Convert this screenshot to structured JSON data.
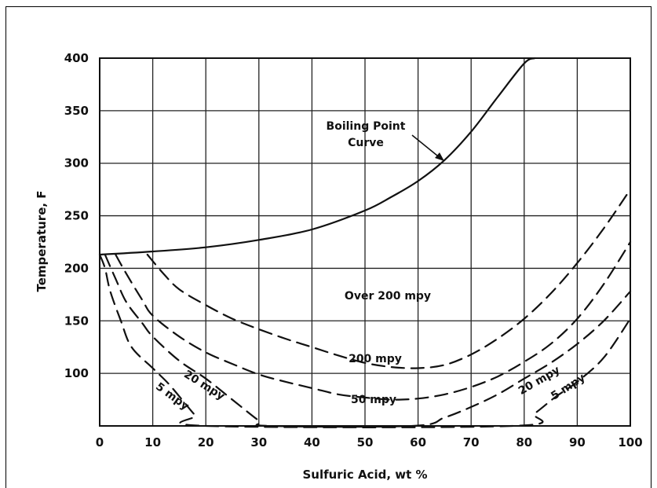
{
  "chart_data": {
    "type": "line",
    "title": "",
    "xlabel": "Sulfuric Acid, wt %",
    "ylabel": "Temperature, F",
    "xlim": [
      0,
      100
    ],
    "ylim": [
      50,
      400
    ],
    "x_ticks": [
      "0",
      "10",
      "20",
      "30",
      "40",
      "50",
      "60",
      "70",
      "80",
      "90",
      "100"
    ],
    "y_ticks": [
      "100",
      "150",
      "200",
      "250",
      "300",
      "350",
      "400"
    ],
    "grid": true,
    "series": [
      {
        "name": "Boiling Point Curve",
        "style": "solid",
        "points": [
          [
            0,
            213
          ],
          [
            10,
            216
          ],
          [
            20,
            220
          ],
          [
            30,
            227
          ],
          [
            40,
            237
          ],
          [
            50,
            255
          ],
          [
            55,
            268
          ],
          [
            60,
            283
          ],
          [
            65,
            303
          ],
          [
            70,
            330
          ],
          [
            75,
            363
          ],
          [
            80,
            395
          ],
          [
            82,
            400
          ]
        ]
      },
      {
        "name": "200 mpy",
        "style": "dashed",
        "points": [
          [
            9,
            213
          ],
          [
            12,
            195
          ],
          [
            15,
            180
          ],
          [
            20,
            165
          ],
          [
            25,
            152
          ],
          [
            30,
            142
          ],
          [
            35,
            133
          ],
          [
            40,
            125
          ],
          [
            45,
            117
          ],
          [
            50,
            110
          ],
          [
            55,
            106
          ],
          [
            60,
            105
          ],
          [
            65,
            108
          ],
          [
            70,
            118
          ],
          [
            75,
            133
          ],
          [
            80,
            152
          ],
          [
            85,
            176
          ],
          [
            90,
            205
          ],
          [
            95,
            238
          ],
          [
            100,
            275
          ]
        ]
      },
      {
        "name": "50 mpy",
        "style": "dashed",
        "points": [
          [
            3,
            213
          ],
          [
            5,
            195
          ],
          [
            8,
            170
          ],
          [
            10,
            155
          ],
          [
            15,
            135
          ],
          [
            20,
            120
          ],
          [
            25,
            109
          ],
          [
            30,
            99
          ],
          [
            35,
            92
          ],
          [
            40,
            86
          ],
          [
            45,
            80
          ],
          [
            50,
            77
          ],
          [
            55,
            75
          ],
          [
            60,
            76
          ],
          [
            65,
            80
          ],
          [
            70,
            87
          ],
          [
            75,
            97
          ],
          [
            80,
            111
          ],
          [
            85,
            128
          ],
          [
            90,
            152
          ],
          [
            95,
            185
          ],
          [
            100,
            225
          ]
        ]
      },
      {
        "name": "20 mpy",
        "style": "dashed",
        "points": [
          [
            1,
            213
          ],
          [
            3,
            190
          ],
          [
            5,
            168
          ],
          [
            8,
            148
          ],
          [
            10,
            135
          ],
          [
            15,
            112
          ],
          [
            20,
            95
          ],
          [
            25,
            75
          ],
          [
            30,
            55
          ],
          [
            32,
            50
          ],
          [
            59,
            50
          ],
          [
            65,
            58
          ],
          [
            70,
            68
          ],
          [
            75,
            80
          ],
          [
            80,
            95
          ],
          [
            85,
            110
          ],
          [
            90,
            128
          ],
          [
            95,
            150
          ],
          [
            100,
            178
          ]
        ]
      },
      {
        "name": "5 mpy",
        "style": "dashed",
        "points": [
          [
            0,
            213
          ],
          [
            1,
            200
          ],
          [
            2,
            178
          ],
          [
            4,
            150
          ],
          [
            6,
            125
          ],
          [
            10,
            105
          ],
          [
            13,
            90
          ],
          [
            16,
            72
          ],
          [
            18,
            60
          ],
          [
            20,
            50
          ],
          [
            78,
            50
          ],
          [
            82,
            62
          ],
          [
            86,
            78
          ],
          [
            90,
            92
          ],
          [
            95,
            115
          ],
          [
            100,
            152
          ]
        ]
      }
    ],
    "annotations": [
      "Boiling Point",
      "Curve",
      "Over 200 mpy",
      "200 mpy",
      "50 mpy",
      "20 mpy",
      "5 mpy",
      "20 mpy",
      "5 mpy"
    ]
  }
}
